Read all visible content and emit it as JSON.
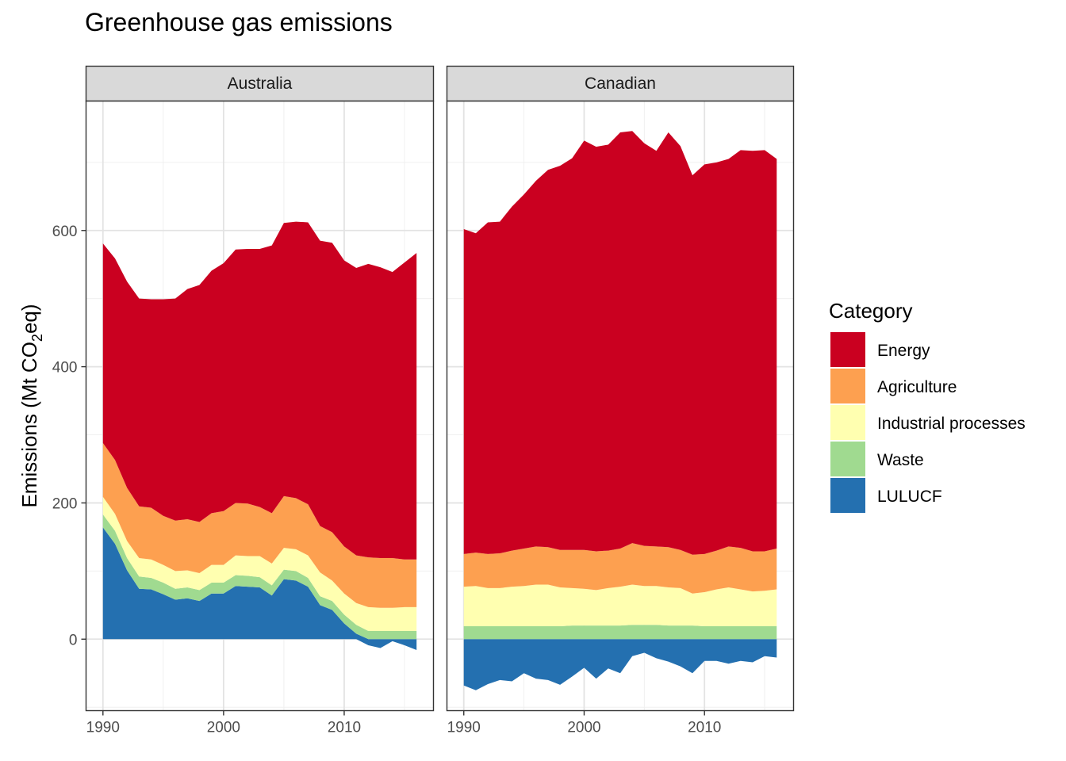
{
  "chart_data": {
    "type": "area",
    "title": "Greenhouse gas emissions",
    "xlabel": "",
    "ylabel": {
      "prefix": "Emissions (Mt CO",
      "subscript": "2",
      "suffix": "eq)"
    },
    "x": [
      1990,
      1991,
      1992,
      1993,
      1994,
      1995,
      1996,
      1997,
      1998,
      1999,
      2000,
      2001,
      2002,
      2003,
      2004,
      2005,
      2006,
      2007,
      2008,
      2009,
      2010,
      2011,
      2012,
      2013,
      2014,
      2015,
      2016
    ],
    "xlim": [
      1988.6,
      2017.4
    ],
    "ylim": [
      -105,
      790
    ],
    "x_ticks": [
      1990,
      2000,
      2010
    ],
    "y_ticks": [
      0,
      200,
      400,
      600
    ],
    "grid": true,
    "stack_order": [
      "Energy",
      "Agriculture",
      "Industrial processes",
      "Waste",
      "LULUCF"
    ],
    "legend": {
      "title": "Category",
      "position": "right",
      "items": [
        {
          "name": "Energy",
          "color": "#CA0020"
        },
        {
          "name": "Agriculture",
          "color": "#FDA050"
        },
        {
          "name": "Industrial processes",
          "color": "#FFFFB0"
        },
        {
          "name": "Waste",
          "color": "#A0DA90"
        },
        {
          "name": "LULUCF",
          "color": "#2470B0"
        }
      ]
    },
    "panels": [
      {
        "strip": "Australia",
        "series": [
          {
            "name": "LULUCF",
            "values": [
              164,
              140,
              101,
              74,
              73,
              66,
              58,
              60,
              56,
              67,
              67,
              78,
              77,
              76,
              64,
              88,
              86,
              77,
              50,
              43,
              23,
              8,
              -9,
              -13,
              -3,
              -9,
              -16
            ]
          },
          {
            "name": "Waste",
            "values": [
              19,
              19,
              18,
              18,
              17,
              17,
              16,
              16,
              16,
              16,
              16,
              16,
              16,
              15,
              15,
              14,
              14,
              13,
              13,
              13,
              13,
              13,
              12,
              12,
              12,
              12,
              12
            ]
          },
          {
            "name": "Industrial processes",
            "values": [
              26,
              25,
              25,
              27,
              27,
              26,
              26,
              25,
              25,
              26,
              26,
              29,
              29,
              31,
              32,
              32,
              32,
              33,
              35,
              30,
              31,
              32,
              35,
              34,
              34,
              35,
              35
            ]
          },
          {
            "name": "Agriculture",
            "values": [
              79,
              79,
              78,
              76,
              76,
              72,
              74,
              75,
              75,
              76,
              79,
              77,
              77,
              72,
              74,
              76,
              75,
              75,
              68,
              71,
              69,
              70,
              73,
              73,
              73,
              70,
              70
            ]
          },
          {
            "name": "Energy",
            "values": [
              293,
              296,
              303,
              305,
              306,
              318,
              326,
              338,
              348,
              356,
              364,
              372,
              374,
              379,
              393,
              401,
              406,
              414,
              419,
              425,
              420,
              422,
              431,
              427,
              420,
              436,
              450
            ]
          }
        ]
      },
      {
        "strip": "Canadian",
        "series": [
          {
            "name": "LULUCF",
            "values": [
              -68,
              -75,
              -66,
              -60,
              -62,
              -50,
              -58,
              -60,
              -67,
              -55,
              -42,
              -58,
              -43,
              -50,
              -25,
              -20,
              -28,
              -33,
              -40,
              -50,
              -32,
              -32,
              -36,
              -32,
              -34,
              -25,
              -27
            ]
          },
          {
            "name": "Waste",
            "values": [
              19,
              19,
              19,
              19,
              19,
              19,
              19,
              19,
              19,
              20,
              20,
              20,
              20,
              20,
              21,
              21,
              21,
              20,
              20,
              20,
              19,
              19,
              19,
              19,
              19,
              19,
              19
            ]
          },
          {
            "name": "Industrial processes",
            "values": [
              58,
              59,
              56,
              56,
              58,
              59,
              61,
              61,
              57,
              55,
              54,
              52,
              55,
              57,
              59,
              57,
              57,
              56,
              55,
              47,
              50,
              54,
              57,
              54,
              51,
              52,
              54
            ]
          },
          {
            "name": "Agriculture",
            "values": [
              48,
              49,
              50,
              51,
              53,
              55,
              56,
              55,
              55,
              56,
              57,
              57,
              55,
              56,
              61,
              59,
              58,
              59,
              56,
              57,
              56,
              57,
              60,
              61,
              59,
              58,
              60
            ]
          },
          {
            "name": "Energy",
            "values": [
              477,
              469,
              487,
              487,
              505,
              520,
              537,
              554,
              564,
              575,
              601,
              594,
              596,
              611,
              605,
              591,
              581,
              609,
              593,
              557,
              572,
              570,
              569,
              584,
              588,
              589,
              572
            ]
          }
        ]
      }
    ]
  }
}
